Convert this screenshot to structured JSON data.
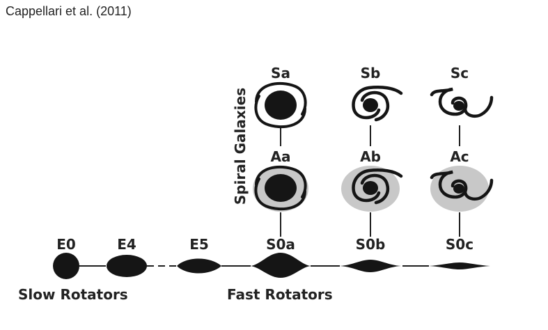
{
  "citation": "Cappellari et al. (2011)",
  "colors": {
    "ink": "#151515",
    "halo": "#c8c8c8",
    "text": "#222222"
  },
  "sequence": {
    "elliptical": [
      "E0",
      "E4",
      "E5"
    ],
    "lenticular": [
      "S0a",
      "S0b",
      "S0c"
    ],
    "anemic": [
      "Aa",
      "Ab",
      "Ac"
    ],
    "spiral": [
      "Sa",
      "Sb",
      "Sc"
    ]
  },
  "groups": {
    "slow": "Slow Rotators",
    "fast": "Fast Rotators",
    "spiral": "Spiral Galaxies"
  }
}
